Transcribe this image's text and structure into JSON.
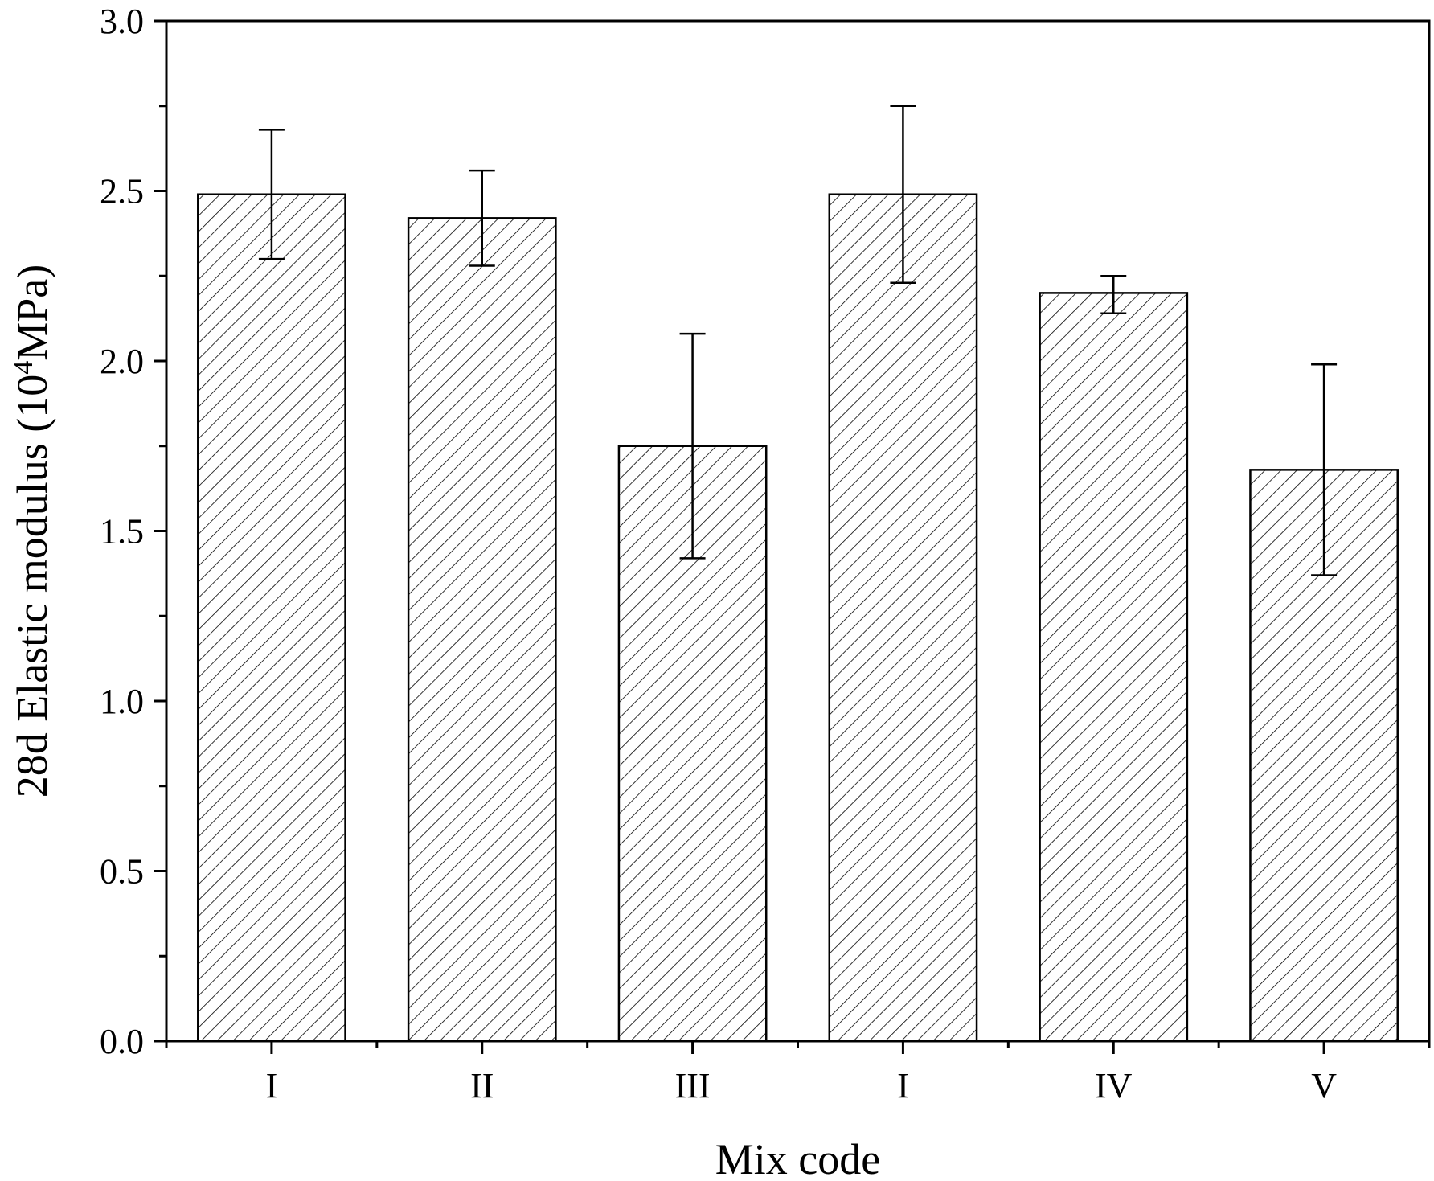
{
  "chart_data": {
    "type": "bar",
    "title": "",
    "xlabel": "Mix code",
    "ylabel_main": "28d Elastic modulus (10",
    "ylabel_sup": "4",
    "ylabel_tail": "MPa)",
    "categories": [
      "I",
      "II",
      "III",
      "I",
      "IV",
      "V"
    ],
    "values": [
      2.49,
      2.42,
      1.75,
      2.49,
      2.2,
      1.68
    ],
    "error_low": [
      2.3,
      2.28,
      1.42,
      2.23,
      2.14,
      1.37
    ],
    "error_high": [
      2.68,
      2.56,
      2.08,
      2.75,
      2.25,
      1.99
    ],
    "ylim": [
      0,
      3.0
    ],
    "yticks": [
      "0.0",
      "0.5",
      "1.0",
      "1.5",
      "2.0",
      "2.5",
      "3.0"
    ],
    "ytick_values": [
      0,
      0.5,
      1.0,
      1.5,
      2.0,
      2.5,
      3.0
    ],
    "grid": false,
    "legend": "none",
    "bar_fill": "hatched",
    "colors": {
      "bar_stroke": "#000000",
      "hatch": "#000000",
      "background": "#ffffff"
    }
  }
}
